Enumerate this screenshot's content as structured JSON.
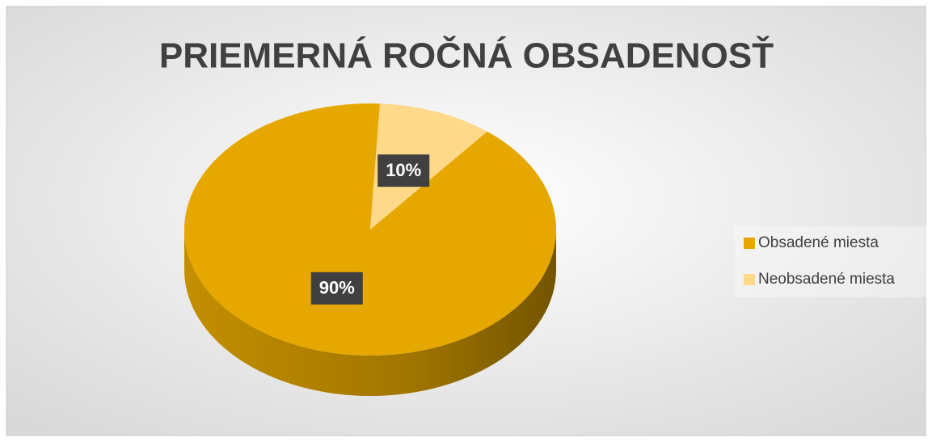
{
  "chart_data": {
    "type": "pie3d",
    "title": "PRIEMERNÁ ROČNÁ OBSADENOSŤ",
    "categories": [
      "Obsadené miesta",
      "Neobsadené miesta"
    ],
    "values": [
      90,
      10
    ],
    "value_labels": [
      "90%",
      "10%"
    ],
    "colors": [
      "#e6a800",
      "#ffd98a"
    ],
    "legend": "right"
  }
}
